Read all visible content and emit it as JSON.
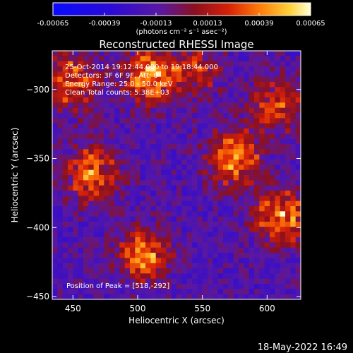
{
  "colorbar": {
    "tick_labels": [
      "-0.00065",
      "-0.00039",
      "-0.00013",
      "0.00013",
      "0.00039",
      "0.00065"
    ],
    "tick_values": [
      -0.00065,
      -0.00039,
      -0.00013,
      0.00013,
      0.00039,
      0.00065
    ],
    "range": [
      -0.00065,
      0.00065
    ],
    "units_text": "(photons cm⁻² s⁻¹ asec⁻²)"
  },
  "chart_data": {
    "type": "heatmap",
    "title": "Reconstructed RHESSI Image",
    "xlabel": "Heliocentric X (arcsec)",
    "ylabel": "Heliocentric Y (arcsec)",
    "xlim": [
      434,
      626
    ],
    "ylim": [
      -452,
      -272
    ],
    "x_ticks": [
      450,
      500,
      550,
      600
    ],
    "y_ticks": [
      -300,
      -350,
      -400,
      -450
    ],
    "x_tick_labels": [
      "450",
      "500",
      "550",
      "600"
    ],
    "y_tick_labels": [
      "−300",
      "−350",
      "−400",
      "−450"
    ],
    "annotations": [
      "25-Oct-2014 19:12:44.000 to 19:18:44.000",
      "Detectors: 3F 6F 9F, Att: 0",
      "Energy Range: 25.0 - 50.0 keV",
      "Clean    Total counts: 5.38E+03"
    ],
    "peak_label": "Position of Peak = [518,-292]",
    "peak_position": [
      518,
      -292
    ],
    "blobs": [
      {
        "x": 510,
        "y": -290,
        "value": 0.00065
      },
      {
        "x": 450,
        "y": -295,
        "value": 0.00052
      },
      {
        "x": 465,
        "y": -362,
        "value": 0.00058
      },
      {
        "x": 575,
        "y": -350,
        "value": 0.0006
      },
      {
        "x": 612,
        "y": -392,
        "value": 0.00062
      },
      {
        "x": 608,
        "y": -312,
        "value": 0.00045
      },
      {
        "x": 505,
        "y": -420,
        "value": 0.00055
      },
      {
        "x": 545,
        "y": -285,
        "value": 0.00035
      }
    ]
  },
  "timestamp": "18-May-2022 16:49"
}
